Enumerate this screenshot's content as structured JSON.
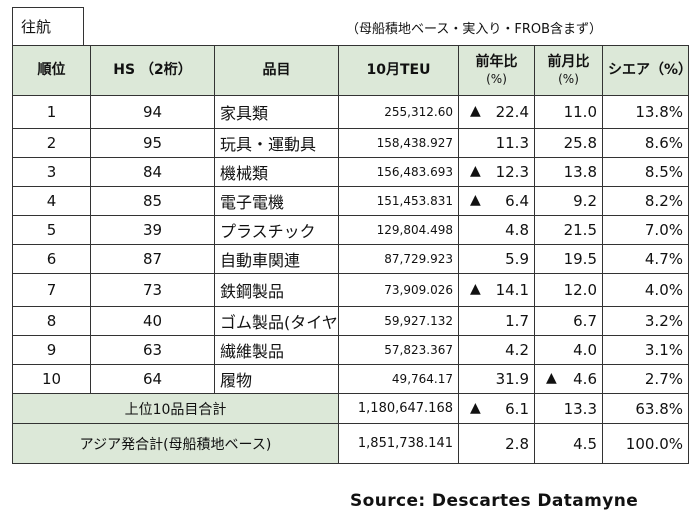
{
  "tag": "往航",
  "note": "（母船積地ベース・実入り・FROB含まず）",
  "headers": {
    "rank": "順位",
    "hs": "HS （2桁）",
    "item": "品目",
    "teu": "10月TEU",
    "yoy": "前年比",
    "yoy_unit": "(%)",
    "mom": "前月比",
    "mom_unit": "(%)",
    "share": "シエア（%）"
  },
  "rows": [
    {
      "rank": "1",
      "hs": "94",
      "item": "家具類",
      "teu": "255,312.60",
      "yoy_mark": "▲",
      "yoy": "22.4",
      "mom_mark": "",
      "mom": "11.0",
      "share": "13.8%"
    },
    {
      "rank": "2",
      "hs": "95",
      "item": "玩具・運動具",
      "teu": "158,438.927",
      "yoy_mark": "",
      "yoy": "11.3",
      "mom_mark": "",
      "mom": "25.8",
      "share": "8.6%"
    },
    {
      "rank": "3",
      "hs": "84",
      "item": "機械類",
      "teu": "156,483.693",
      "yoy_mark": "▲",
      "yoy": "12.3",
      "mom_mark": "",
      "mom": "13.8",
      "share": "8.5%"
    },
    {
      "rank": "4",
      "hs": "85",
      "item": "電子電機",
      "teu": "151,453.831",
      "yoy_mark": "▲",
      "yoy": "6.4",
      "mom_mark": "",
      "mom": "9.2",
      "share": "8.2%"
    },
    {
      "rank": "5",
      "hs": "39",
      "item": "プラスチック",
      "teu": "129,804.498",
      "yoy_mark": "",
      "yoy": "4.8",
      "mom_mark": "",
      "mom": "21.5",
      "share": "7.0%"
    },
    {
      "rank": "6",
      "hs": "87",
      "item": "自動車関連",
      "teu": "87,729.923",
      "yoy_mark": "",
      "yoy": "5.9",
      "mom_mark": "",
      "mom": "19.5",
      "share": "4.7%"
    },
    {
      "rank": "7",
      "hs": "73",
      "item": "鉄鋼製品",
      "teu": "73,909.026",
      "yoy_mark": "▲",
      "yoy": "14.1",
      "mom_mark": "",
      "mom": "12.0",
      "share": "4.0%"
    },
    {
      "rank": "8",
      "hs": "40",
      "item": "ゴム製品(タイヤ)",
      "teu": "59,927.132",
      "yoy_mark": "",
      "yoy": "1.7",
      "mom_mark": "",
      "mom": "6.7",
      "share": "3.2%"
    },
    {
      "rank": "9",
      "hs": "63",
      "item": "繊維製品",
      "teu": "57,823.367",
      "yoy_mark": "",
      "yoy": "4.2",
      "mom_mark": "",
      "mom": "4.0",
      "share": "3.1%"
    },
    {
      "rank": "10",
      "hs": "64",
      "item": "履物",
      "teu": "49,764.17",
      "yoy_mark": "",
      "yoy": "31.9",
      "mom_mark": "▲",
      "mom": "4.6",
      "share": "2.7%"
    }
  ],
  "totals": [
    {
      "label": "上位10品目合計",
      "teu": "1,180,647.168",
      "yoy_mark": "▲",
      "yoy": "6.1",
      "mom_mark": "",
      "mom": "13.3",
      "share": "63.8%"
    },
    {
      "label": "アジア発合計(母船積地ベース)",
      "teu": "1,851,738.141",
      "yoy_mark": "",
      "yoy": "2.8",
      "mom_mark": "",
      "mom": "4.5",
      "share": "100.0%"
    }
  ],
  "source": "Source: Descartes Datamyne"
}
